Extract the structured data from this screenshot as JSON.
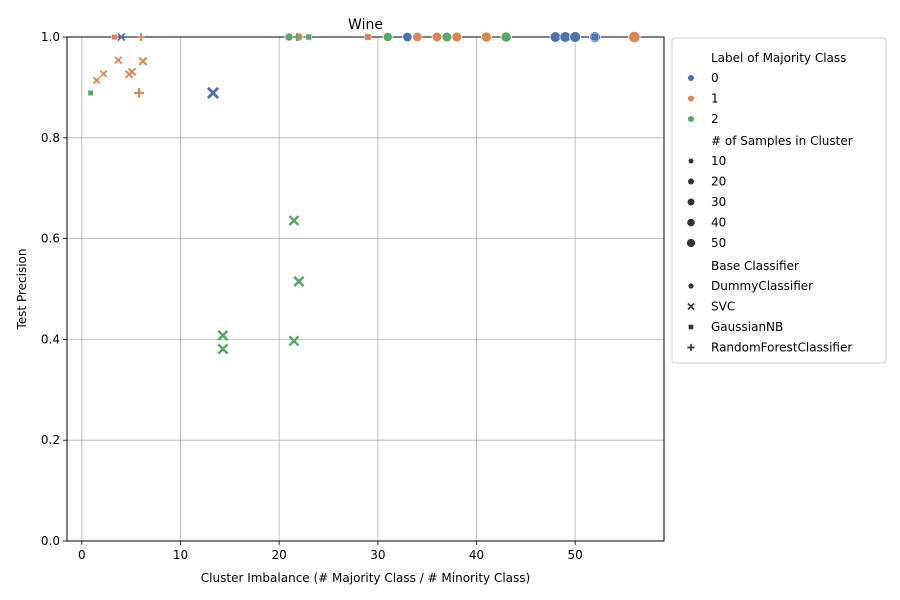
{
  "chart_data": {
    "type": "scatter",
    "title": "Wine",
    "xlabel": "Cluster Imbalance (# Majority Class / # Minority Class)",
    "ylabel": "Test Precision",
    "xlim": [
      -1.5,
      59
    ],
    "ylim": [
      0,
      1.0
    ],
    "x_ticks": [
      "0",
      "10",
      "20",
      "30",
      "40",
      "50"
    ],
    "y_ticks": [
      "0.0",
      "0.2",
      "0.4",
      "0.6",
      "0.8",
      "1.0"
    ],
    "grid": true,
    "legend_position": "outside-right",
    "legend": {
      "hue_title": "Label of Majority Class",
      "hue": [
        {
          "label": "0",
          "color": "#4c72b0"
        },
        {
          "label": "1",
          "color": "#dd8452"
        },
        {
          "label": "2",
          "color": "#55a868"
        }
      ],
      "size_title": "# of Samples in Cluster",
      "sizes": [
        "10",
        "20",
        "30",
        "40",
        "50"
      ],
      "style_title": "Base Classifier",
      "styles": [
        {
          "label": "DummyClassifier",
          "marker": "circle"
        },
        {
          "label": "SVC",
          "marker": "x"
        },
        {
          "label": "GaussianNB",
          "marker": "square"
        },
        {
          "label": "RandomForestClassifier",
          "marker": "plus"
        }
      ]
    },
    "points": [
      {
        "x": 48,
        "y": 1.0,
        "label": "0",
        "classifier": "DummyClassifier",
        "samples": 48
      },
      {
        "x": 49,
        "y": 1.0,
        "label": "0",
        "classifier": "DummyClassifier",
        "samples": 49
      },
      {
        "x": 50,
        "y": 1.0,
        "label": "0",
        "classifier": "DummyClassifier",
        "samples": 50
      },
      {
        "x": 33,
        "y": 1.0,
        "label": "0",
        "classifier": "DummyClassifier",
        "samples": 33
      },
      {
        "x": 52,
        "y": 1.0,
        "label": "0",
        "classifier": "DummyClassifier",
        "samples": 52
      },
      {
        "x": 34,
        "y": 1.0,
        "label": "1",
        "classifier": "DummyClassifier",
        "samples": 34
      },
      {
        "x": 36,
        "y": 1.0,
        "label": "1",
        "classifier": "DummyClassifier",
        "samples": 36
      },
      {
        "x": 38,
        "y": 1.0,
        "label": "1",
        "classifier": "DummyClassifier",
        "samples": 38
      },
      {
        "x": 41,
        "y": 1.0,
        "label": "1",
        "classifier": "DummyClassifier",
        "samples": 41
      },
      {
        "x": 56,
        "y": 1.0,
        "label": "1",
        "classifier": "DummyClassifier",
        "samples": 56
      },
      {
        "x": 22,
        "y": 1.0,
        "label": "1",
        "classifier": "DummyClassifier",
        "samples": 22
      },
      {
        "x": 21,
        "y": 1.0,
        "label": "2",
        "classifier": "DummyClassifier",
        "samples": 21
      },
      {
        "x": 31,
        "y": 1.0,
        "label": "2",
        "classifier": "DummyClassifier",
        "samples": 31
      },
      {
        "x": 37,
        "y": 1.0,
        "label": "2",
        "classifier": "DummyClassifier",
        "samples": 37
      },
      {
        "x": 43,
        "y": 1.0,
        "label": "2",
        "classifier": "DummyClassifier",
        "samples": 43
      },
      {
        "x": 13.3,
        "y": 0.889,
        "label": "0",
        "classifier": "SVC",
        "samples": 40
      },
      {
        "x": 4.0,
        "y": 1.0,
        "label": "0",
        "classifier": "SVC",
        "samples": 12
      },
      {
        "x": 1.5,
        "y": 0.914,
        "label": "1",
        "classifier": "SVC",
        "samples": 8
      },
      {
        "x": 2.2,
        "y": 0.927,
        "label": "1",
        "classifier": "SVC",
        "samples": 8
      },
      {
        "x": 3.7,
        "y": 0.954,
        "label": "1",
        "classifier": "SVC",
        "samples": 10
      },
      {
        "x": 4.8,
        "y": 0.926,
        "label": "1",
        "classifier": "SVC",
        "samples": 12
      },
      {
        "x": 5.1,
        "y": 0.931,
        "label": "1",
        "classifier": "SVC",
        "samples": 12
      },
      {
        "x": 6.2,
        "y": 0.952,
        "label": "1",
        "classifier": "SVC",
        "samples": 15
      },
      {
        "x": 21.5,
        "y": 0.636,
        "label": "2",
        "classifier": "SVC",
        "samples": 28
      },
      {
        "x": 22.0,
        "y": 0.515,
        "label": "2",
        "classifier": "SVC",
        "samples": 30
      },
      {
        "x": 14.3,
        "y": 0.408,
        "label": "2",
        "classifier": "SVC",
        "samples": 30
      },
      {
        "x": 21.5,
        "y": 0.397,
        "label": "2",
        "classifier": "SVC",
        "samples": 28
      },
      {
        "x": 14.3,
        "y": 0.381,
        "label": "2",
        "classifier": "SVC",
        "samples": 30
      },
      {
        "x": 0.9,
        "y": 0.889,
        "label": "2",
        "classifier": "GaussianNB",
        "samples": 8
      },
      {
        "x": 3.3,
        "y": 1.0,
        "label": "1",
        "classifier": "GaussianNB",
        "samples": 10
      },
      {
        "x": 29,
        "y": 1.0,
        "label": "1",
        "classifier": "GaussianNB",
        "samples": 15
      },
      {
        "x": 23,
        "y": 1.0,
        "label": "2",
        "classifier": "GaussianNB",
        "samples": 12
      },
      {
        "x": 52,
        "y": 1.0,
        "label": "0",
        "classifier": "GaussianNB",
        "samples": 30
      },
      {
        "x": 5.8,
        "y": 0.889,
        "label": "1",
        "classifier": "RandomForestClassifier",
        "samples": 20
      },
      {
        "x": 6.0,
        "y": 1.0,
        "label": "1",
        "classifier": "RandomForestClassifier",
        "samples": 10
      },
      {
        "x": 21.8,
        "y": 1.0,
        "label": "2",
        "classifier": "RandomForestClassifier",
        "samples": 10
      }
    ]
  }
}
